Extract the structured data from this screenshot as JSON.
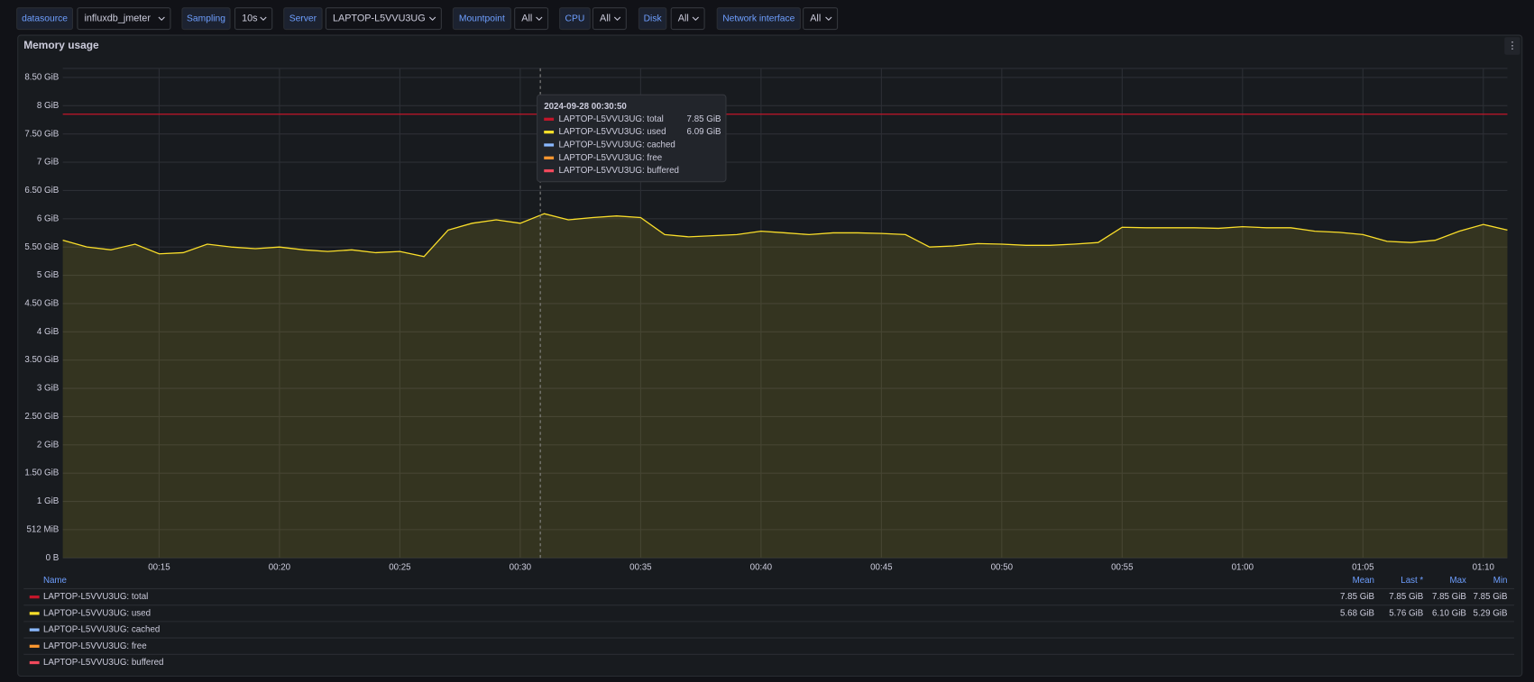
{
  "variables": [
    {
      "label": "datasource",
      "value": "influxdb_jmeter"
    },
    {
      "label": "Sampling",
      "value": "10s"
    },
    {
      "label": "Server",
      "value": "LAPTOP-L5VVU3UG"
    },
    {
      "label": "Mountpoint",
      "value": "All"
    },
    {
      "label": "CPU",
      "value": "All"
    },
    {
      "label": "Disk",
      "value": "All"
    },
    {
      "label": "Network interface",
      "value": "All"
    }
  ],
  "chart_data": {
    "type": "line",
    "title": "Memory usage",
    "x": [
      "00:11",
      "00:12",
      "00:13",
      "00:14",
      "00:15",
      "00:16",
      "00:17",
      "00:18",
      "00:19",
      "00:20",
      "00:21",
      "00:22",
      "00:23",
      "00:24",
      "00:25",
      "00:26",
      "00:27",
      "00:28",
      "00:29",
      "00:30",
      "00:31",
      "00:32",
      "00:33",
      "00:34",
      "00:35",
      "00:36",
      "00:37",
      "00:38",
      "00:39",
      "00:40",
      "00:41",
      "00:42",
      "00:43",
      "00:44",
      "00:45",
      "00:46",
      "00:47",
      "00:48",
      "00:49",
      "00:50",
      "00:51",
      "00:52",
      "00:53",
      "00:54",
      "00:55",
      "00:56",
      "00:57",
      "00:58",
      "00:59",
      "01:00",
      "01:01",
      "01:02",
      "01:03",
      "01:04",
      "01:05",
      "01:06",
      "01:07",
      "01:08",
      "01:09",
      "01:10",
      "01:11"
    ],
    "xlim": [
      "00:11",
      "01:11"
    ],
    "xticks": [
      "00:15",
      "00:20",
      "00:25",
      "00:30",
      "00:35",
      "00:40",
      "00:45",
      "00:50",
      "00:55",
      "01:00",
      "01:05",
      "01:10"
    ],
    "ylim": [
      0,
      8.66
    ],
    "yticks": [
      {
        "value": 0,
        "label": "0 B"
      },
      {
        "value": 0.5,
        "label": "512 MiB"
      },
      {
        "value": 1,
        "label": "1 GiB"
      },
      {
        "value": 1.5,
        "label": "1.50 GiB"
      },
      {
        "value": 2,
        "label": "2 GiB"
      },
      {
        "value": 2.5,
        "label": "2.50 GiB"
      },
      {
        "value": 3,
        "label": "3 GiB"
      },
      {
        "value": 3.5,
        "label": "3.50 GiB"
      },
      {
        "value": 4,
        "label": "4 GiB"
      },
      {
        "value": 4.5,
        "label": "4.50 GiB"
      },
      {
        "value": 5,
        "label": "5 GiB"
      },
      {
        "value": 5.5,
        "label": "5.50 GiB"
      },
      {
        "value": 6,
        "label": "6 GiB"
      },
      {
        "value": 6.5,
        "label": "6.50 GiB"
      },
      {
        "value": 7,
        "label": "7 GiB"
      },
      {
        "value": 7.5,
        "label": "7.50 GiB"
      },
      {
        "value": 8,
        "label": "8 GiB"
      },
      {
        "value": 8.5,
        "label": "8.50 GiB"
      }
    ],
    "grid": true,
    "series": [
      {
        "name": "LAPTOP-L5VVU3UG: total",
        "color": "#c4162a",
        "values": [
          7.85,
          7.85,
          7.85,
          7.85,
          7.85,
          7.85,
          7.85,
          7.85,
          7.85,
          7.85,
          7.85,
          7.85,
          7.85,
          7.85,
          7.85,
          7.85,
          7.85,
          7.85,
          7.85,
          7.85,
          7.85,
          7.85,
          7.85,
          7.85,
          7.85,
          7.85,
          7.85,
          7.85,
          7.85,
          7.85,
          7.85,
          7.85,
          7.85,
          7.85,
          7.85,
          7.85,
          7.85,
          7.85,
          7.85,
          7.85,
          7.85,
          7.85,
          7.85,
          7.85,
          7.85,
          7.85,
          7.85,
          7.85,
          7.85,
          7.85,
          7.85,
          7.85,
          7.85,
          7.85,
          7.85,
          7.85,
          7.85,
          7.85,
          7.85,
          7.85,
          7.85
        ],
        "legend_values": [
          "7.85 GiB",
          "7.85 GiB",
          "7.85 GiB",
          "7.85 GiB"
        ]
      },
      {
        "name": "LAPTOP-L5VVU3UG: used",
        "color": "#fade2a",
        "fill": true,
        "values": [
          5.62,
          5.5,
          5.45,
          5.55,
          5.38,
          5.4,
          5.55,
          5.5,
          5.47,
          5.5,
          5.45,
          5.42,
          5.45,
          5.4,
          5.42,
          5.33,
          5.8,
          5.92,
          5.98,
          5.92,
          6.09,
          5.98,
          6.02,
          6.05,
          6.02,
          5.72,
          5.68,
          5.7,
          5.72,
          5.78,
          5.75,
          5.72,
          5.75,
          5.75,
          5.74,
          5.72,
          5.5,
          5.52,
          5.56,
          5.55,
          5.53,
          5.53,
          5.55,
          5.58,
          5.85,
          5.84,
          5.84,
          5.84,
          5.83,
          5.86,
          5.84,
          5.84,
          5.78,
          5.76,
          5.72,
          5.6,
          5.58,
          5.62,
          5.78,
          5.9,
          5.8
        ],
        "legend_values": [
          "5.68 GiB",
          "5.76 GiB",
          "6.10 GiB",
          "5.29 GiB"
        ]
      },
      {
        "name": "LAPTOP-L5VVU3UG: cached",
        "color": "#8ab8ff"
      },
      {
        "name": "LAPTOP-L5VVU3UG: free",
        "color": "#ff9830"
      },
      {
        "name": "LAPTOP-L5VVU3UG: buffered",
        "color": "#f2495c"
      }
    ],
    "legend_headers": [
      "Name",
      "Mean",
      "Last *",
      "Max",
      "Min"
    ],
    "tooltip": {
      "time": "2024-09-28 00:30:50",
      "values": [
        "7.85 GiB",
        "6.09 GiB",
        null,
        null,
        null
      ]
    }
  }
}
